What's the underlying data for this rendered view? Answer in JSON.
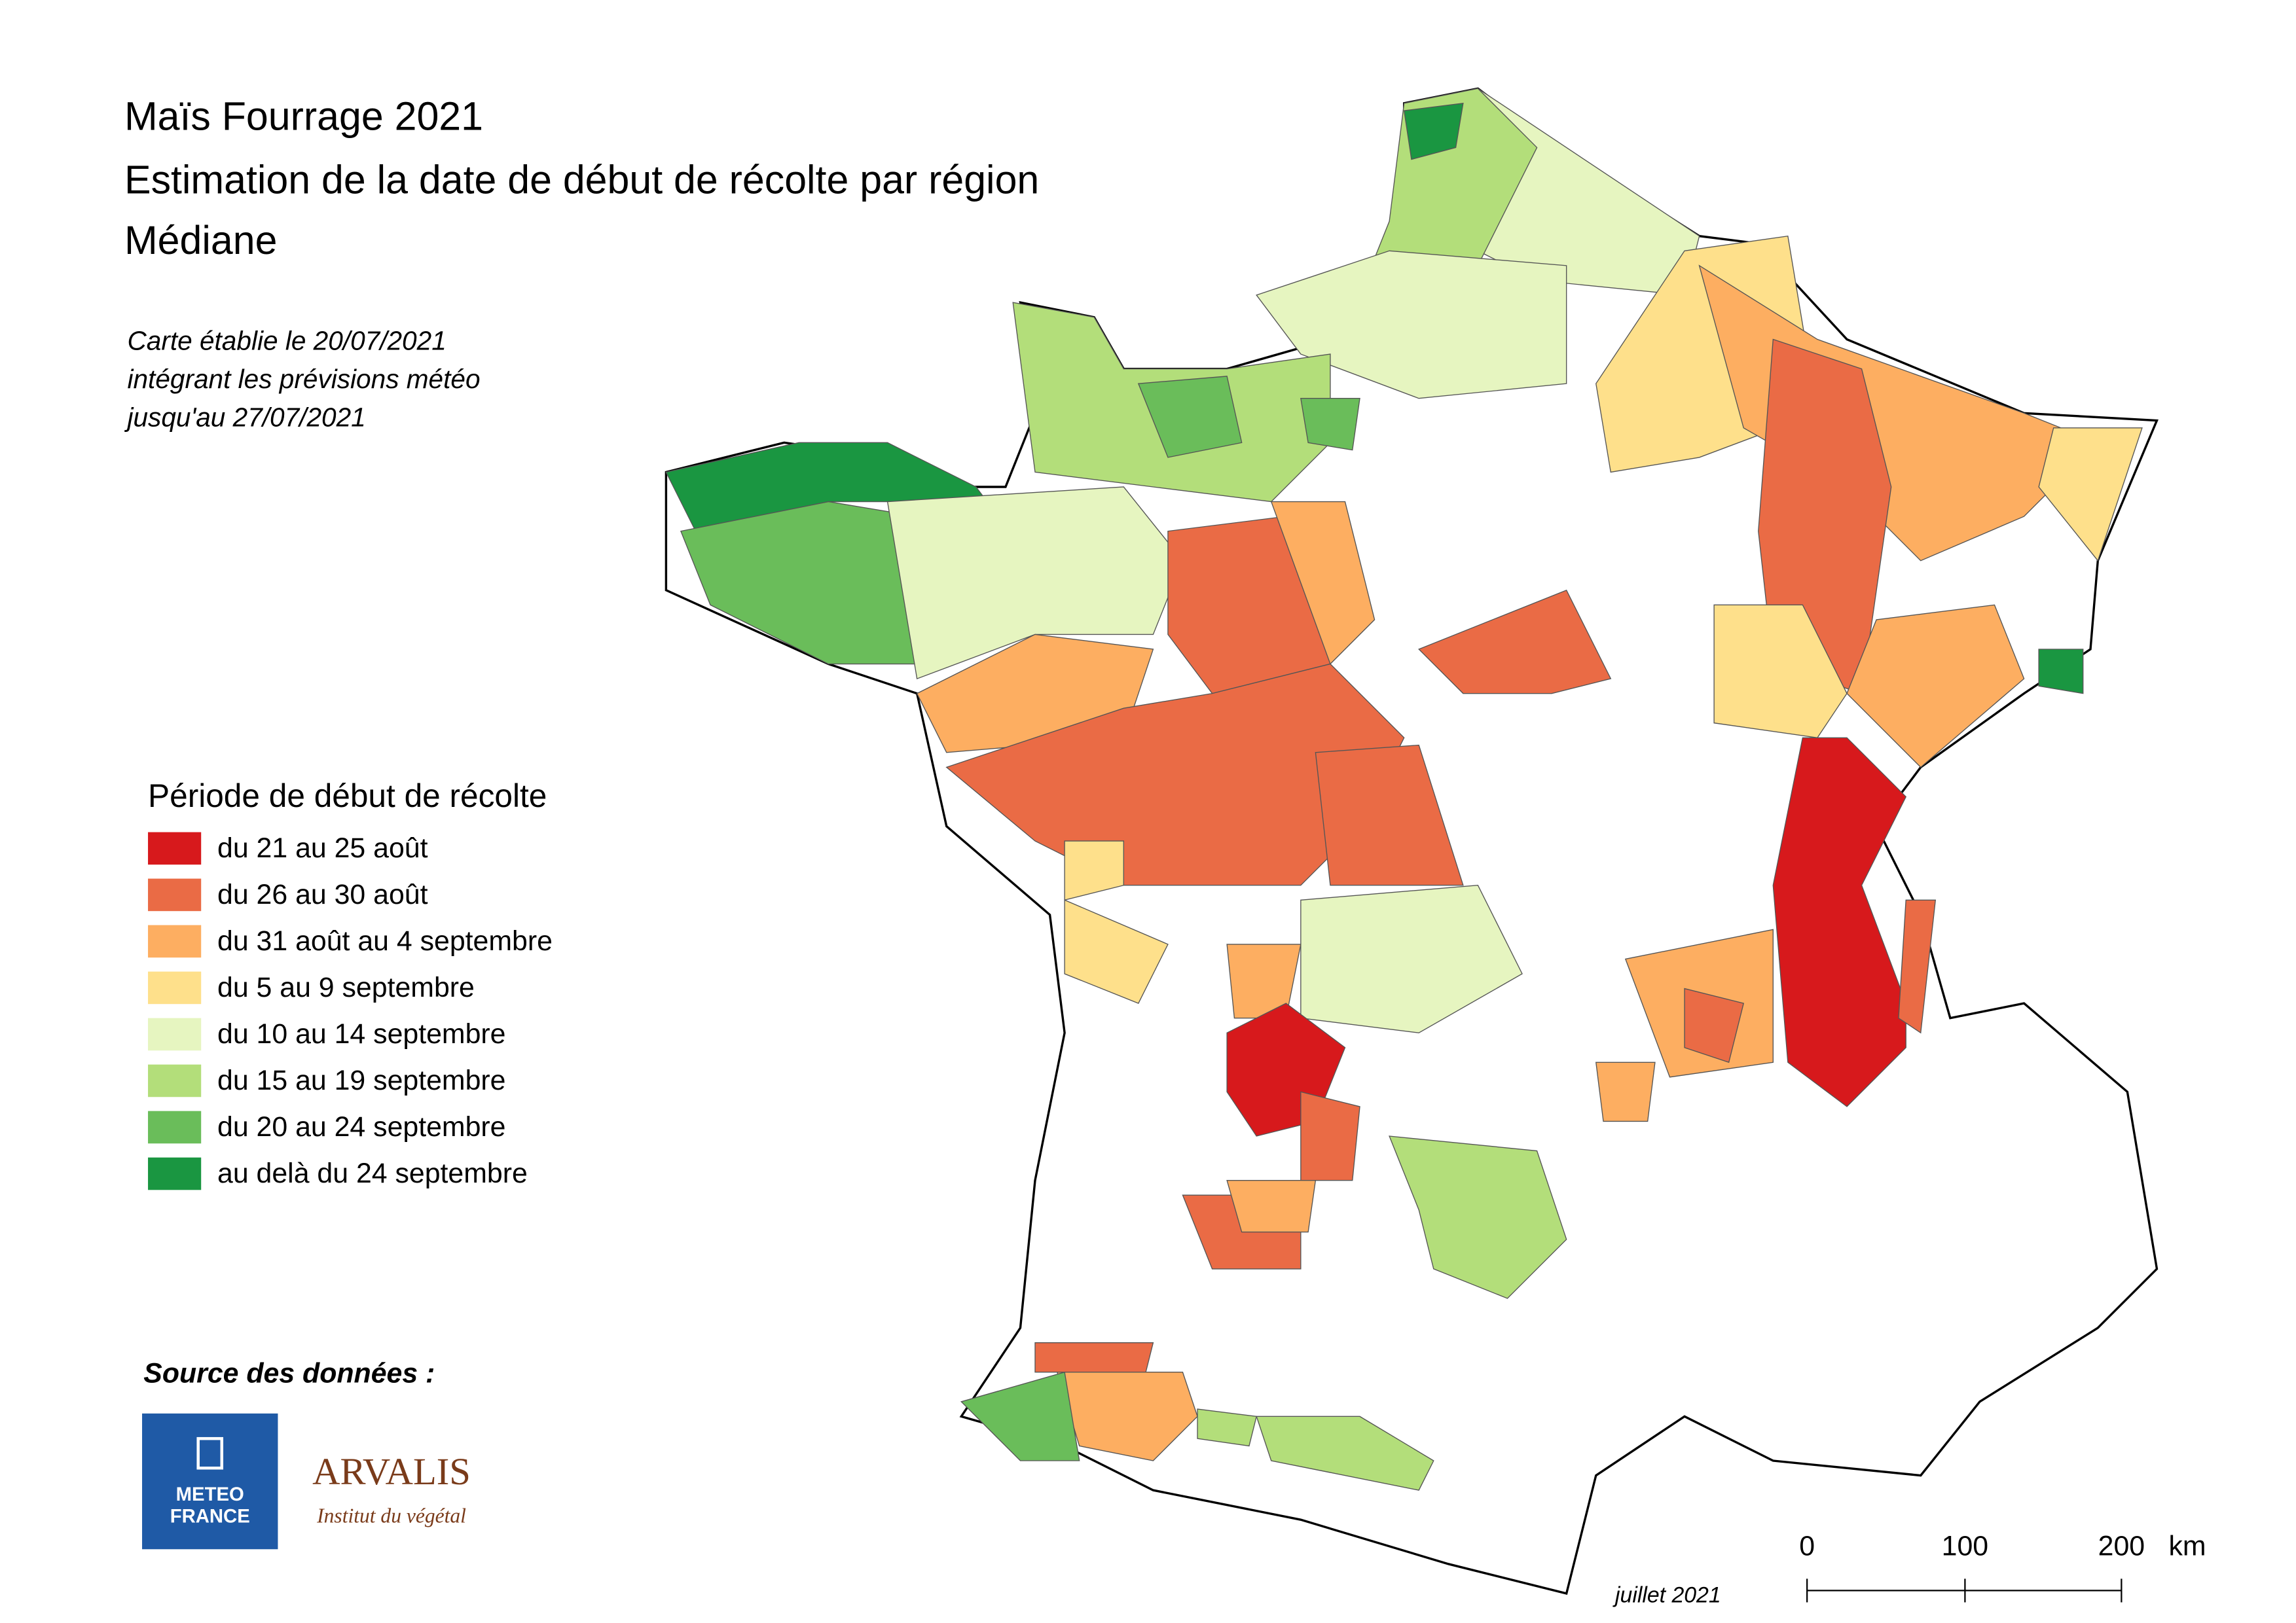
{
  "header": {
    "title": [
      "Maïs Fourrage 2021",
      "Estimation de la date de début de récolte par région",
      "Médiane"
    ],
    "note": [
      "Carte établie le 20/07/2021",
      "intégrant les prévisions météo",
      "jusqu'au 27/07/2021"
    ]
  },
  "legend": {
    "title": "Période de début de récolte",
    "items": [
      {
        "label": "du 21 au 25 août",
        "color": "#d7191c"
      },
      {
        "label": "du 26 au 30 août",
        "color": "#ea6b45"
      },
      {
        "label": "du 31 août au 4 septembre",
        "color": "#fdae61"
      },
      {
        "label": "du 5 au 9 septembre",
        "color": "#fee08b"
      },
      {
        "label": "du 10 au 14 septembre",
        "color": "#e6f5c0"
      },
      {
        "label": "du 15 au 19 septembre",
        "color": "#b3de7a"
      },
      {
        "label": "du 20 au 24 septembre",
        "color": "#6abd5a"
      },
      {
        "label": "au delà du 24 septembre",
        "color": "#1a9641"
      }
    ]
  },
  "source": {
    "label": "Source des données :",
    "logos": [
      "METEO",
      "FRANCE",
      "ARVALIS",
      "Institut du végétal"
    ]
  },
  "scale": {
    "labels": [
      0,
      100,
      200
    ],
    "unit": "km"
  },
  "footer": "juillet 2021"
}
